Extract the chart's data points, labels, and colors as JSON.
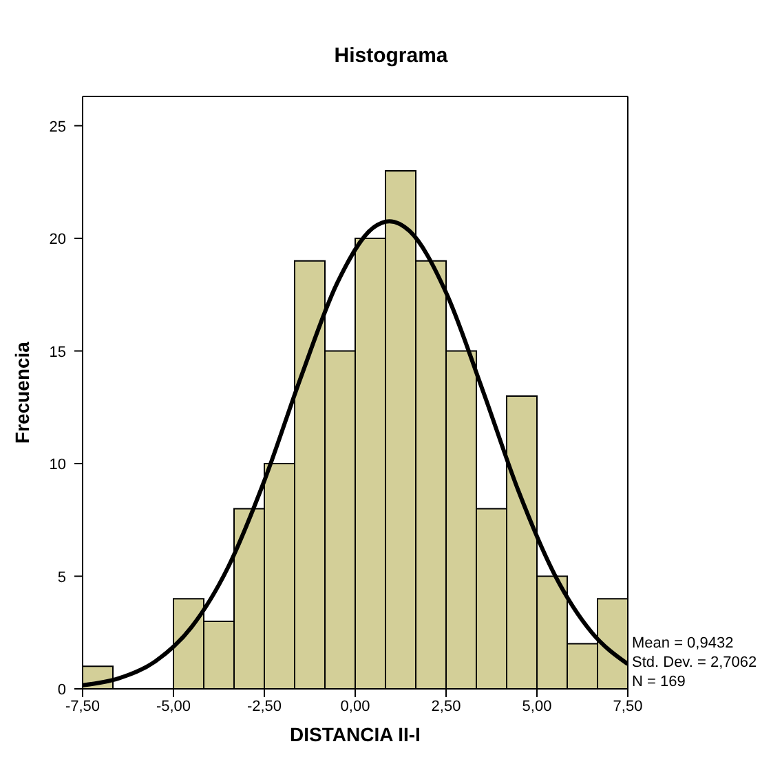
{
  "chart_data": {
    "type": "histogram",
    "title": "Histograma",
    "xlabel": "DISTANCIA II-I",
    "ylabel": "Frecuencia",
    "bins": [
      -7.5,
      -6.6667,
      -5.8333,
      -5,
      -4.1667,
      -3.3333,
      -2.5,
      -1.6667,
      -0.8333,
      0,
      0.8333,
      1.6667,
      2.5,
      3.3333,
      4.1667,
      5,
      5.8333,
      6.6667,
      7.5
    ],
    "values": [
      1,
      0,
      0,
      4,
      3,
      8,
      10,
      19,
      15,
      20,
      23,
      19,
      15,
      8,
      13,
      5,
      2,
      4
    ],
    "color": "#d3cf98",
    "series": [
      {
        "type": "line",
        "color": "#000000",
        "x": [
          -7.5,
          -6.5,
          -5.5,
          -4.5,
          -3.5,
          -2.5,
          -1.5,
          -0.5,
          0.5,
          0.94,
          1.5,
          2.5,
          3.5,
          4.5,
          5.5,
          6.5,
          7.5
        ],
        "values": [
          0.16,
          0.47,
          1.22,
          2.75,
          5.39,
          9.24,
          13.81,
          18.0,
          20.48,
          20.76,
          20.32,
          17.59,
          13.29,
          8.75,
          5.03,
          2.52,
          1.1
        ]
      }
    ],
    "xlim": [
      -7.5,
      7.5
    ],
    "xticks": [
      {
        "value": -7.5,
        "label": "-7,50"
      },
      {
        "value": -5,
        "label": "-5,00"
      },
      {
        "value": -2.5,
        "label": "-2,50"
      },
      {
        "value": 0,
        "label": "0,00"
      },
      {
        "value": 2.5,
        "label": "2,50"
      },
      {
        "value": 5,
        "label": "5,00"
      },
      {
        "value": 7.5,
        "label": "7,50"
      }
    ],
    "ylim": [
      0,
      26.3
    ],
    "yticks": [
      0,
      5,
      10,
      15,
      20,
      25
    ],
    "annotations": [
      "Mean = 0,9432",
      "Std. Dev. = 2,7062",
      "N = 169"
    ],
    "grid": false
  }
}
